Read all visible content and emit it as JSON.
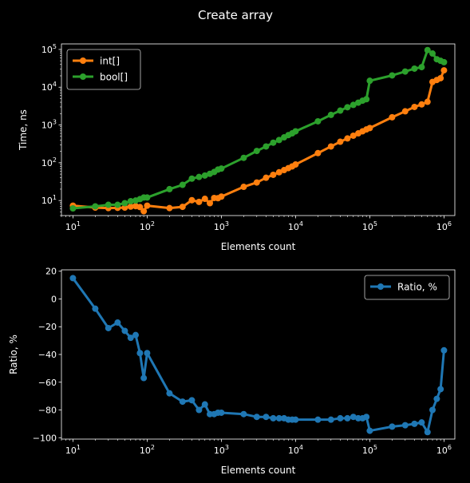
{
  "figure_title": "Create array",
  "colors": {
    "background": "#000000",
    "foreground": "#ffffff",
    "int": "#ff7f0e",
    "bool": "#2ca02c",
    "ratio": "#1f77b4",
    "legend_bg": "#000000",
    "legend_edge": "#cccccc"
  },
  "chart_data": [
    {
      "type": "line",
      "title": "",
      "xlabel": "Elements count",
      "ylabel": "Time, ns",
      "xscale": "log",
      "yscale": "log",
      "xlim": [
        7,
        1400000
      ],
      "ylim": [
        4,
        140000
      ],
      "x_ticks": [
        {
          "v": 10,
          "b": "10",
          "e": "1"
        },
        {
          "v": 100,
          "b": "10",
          "e": "2"
        },
        {
          "v": 1000,
          "b": "10",
          "e": "3"
        },
        {
          "v": 10000,
          "b": "10",
          "e": "4"
        },
        {
          "v": 100000,
          "b": "10",
          "e": "5"
        },
        {
          "v": 1000000,
          "b": "10",
          "e": "6"
        }
      ],
      "y_ticks": [
        {
          "v": 10,
          "b": "10",
          "e": "1"
        },
        {
          "v": 100,
          "b": "10",
          "e": "2"
        },
        {
          "v": 1000,
          "b": "10",
          "e": "3"
        },
        {
          "v": 10000,
          "b": "10",
          "e": "4"
        },
        {
          "v": 100000,
          "b": "10",
          "e": "5"
        }
      ],
      "legend": "upper left",
      "series": [
        {
          "name": "int[]",
          "color": "#ff7f0e",
          "x": [
            10,
            20,
            30,
            40,
            50,
            60,
            70,
            80,
            90,
            100,
            200,
            300,
            400,
            500,
            600,
            700,
            800,
            900,
            1000,
            2000,
            3000,
            4000,
            5000,
            6000,
            7000,
            8000,
            9000,
            10000,
            20000,
            30000,
            40000,
            50000,
            60000,
            70000,
            80000,
            90000,
            100000,
            200000,
            300000,
            400000,
            500000,
            600000,
            700000,
            800000,
            900000,
            1000000
          ],
          "y": [
            7.3,
            6.5,
            6.3,
            6.4,
            6.5,
            6.9,
            7.1,
            6.7,
            5.2,
            7.3,
            6.3,
            6.8,
            10.2,
            9.2,
            11.1,
            8.5,
            11.7,
            11.5,
            12.7,
            23,
            30,
            40,
            48,
            56,
            64,
            72,
            80,
            90,
            180,
            270,
            360,
            440,
            520,
            600,
            680,
            760,
            830,
            1600,
            2300,
            3000,
            3500,
            4100,
            13800,
            15500,
            17300,
            28000
          ]
        },
        {
          "name": "bool[]",
          "color": "#2ca02c",
          "x": [
            10,
            20,
            30,
            40,
            50,
            60,
            70,
            80,
            90,
            100,
            200,
            300,
            400,
            500,
            600,
            700,
            800,
            900,
            1000,
            2000,
            3000,
            4000,
            5000,
            6000,
            7000,
            8000,
            9000,
            10000,
            20000,
            30000,
            40000,
            50000,
            60000,
            70000,
            80000,
            90000,
            100000,
            200000,
            300000,
            400000,
            500000,
            600000,
            700000,
            800000,
            900000,
            1000000
          ],
          "y": [
            6.2,
            7.0,
            7.7,
            7.7,
            8.5,
            9.6,
            10.0,
            10.9,
            12.0,
            12.0,
            20,
            26,
            38,
            42,
            46,
            51,
            57,
            66,
            70,
            135,
            205,
            270,
            340,
            400,
            470,
            540,
            600,
            680,
            1250,
            1850,
            2400,
            2950,
            3400,
            3900,
            4400,
            4800,
            14800,
            20500,
            26000,
            31000,
            34000,
            96000,
            78000,
            55000,
            50000,
            46000
          ]
        }
      ]
    },
    {
      "type": "line",
      "title": "",
      "xlabel": "Elements count",
      "ylabel": "Ratio, %",
      "xscale": "log",
      "yscale": "linear",
      "xlim": [
        7,
        1400000
      ],
      "ylim": [
        -101,
        21
      ],
      "x_ticks": [
        {
          "v": 10,
          "b": "10",
          "e": "1"
        },
        {
          "v": 100,
          "b": "10",
          "e": "2"
        },
        {
          "v": 1000,
          "b": "10",
          "e": "3"
        },
        {
          "v": 10000,
          "b": "10",
          "e": "4"
        },
        {
          "v": 100000,
          "b": "10",
          "e": "5"
        },
        {
          "v": 1000000,
          "b": "10",
          "e": "6"
        }
      ],
      "y_ticks": [
        {
          "v": 20,
          "label": "20"
        },
        {
          "v": 0,
          "label": "0"
        },
        {
          "v": -20,
          "label": "−20"
        },
        {
          "v": -40,
          "label": "−40"
        },
        {
          "v": -60,
          "label": "−60"
        },
        {
          "v": -80,
          "label": "−80"
        },
        {
          "v": -100,
          "label": "−100"
        }
      ],
      "legend": "upper right",
      "series": [
        {
          "name": "Ratio, %",
          "color": "#1f77b4",
          "x": [
            10,
            20,
            30,
            40,
            50,
            60,
            70,
            80,
            90,
            100,
            200,
            300,
            400,
            500,
            600,
            700,
            800,
            900,
            1000,
            2000,
            3000,
            4000,
            5000,
            6000,
            7000,
            8000,
            9000,
            10000,
            20000,
            30000,
            40000,
            50000,
            60000,
            70000,
            80000,
            90000,
            100000,
            200000,
            300000,
            400000,
            500000,
            600000,
            700000,
            800000,
            900000,
            1000000
          ],
          "y": [
            15,
            -7,
            -21,
            -17,
            -23,
            -28,
            -26,
            -39,
            -57,
            -39,
            -68,
            -74,
            -73,
            -80,
            -76,
            -83,
            -83,
            -82,
            -82,
            -83,
            -85,
            -85,
            -86,
            -86,
            -86,
            -87,
            -87,
            -87,
            -87,
            -87,
            -86,
            -86,
            -85,
            -86,
            -86,
            -85,
            -95,
            -92,
            -91,
            -90,
            -89,
            -96,
            -80,
            -72,
            -65,
            -37
          ]
        }
      ]
    }
  ]
}
